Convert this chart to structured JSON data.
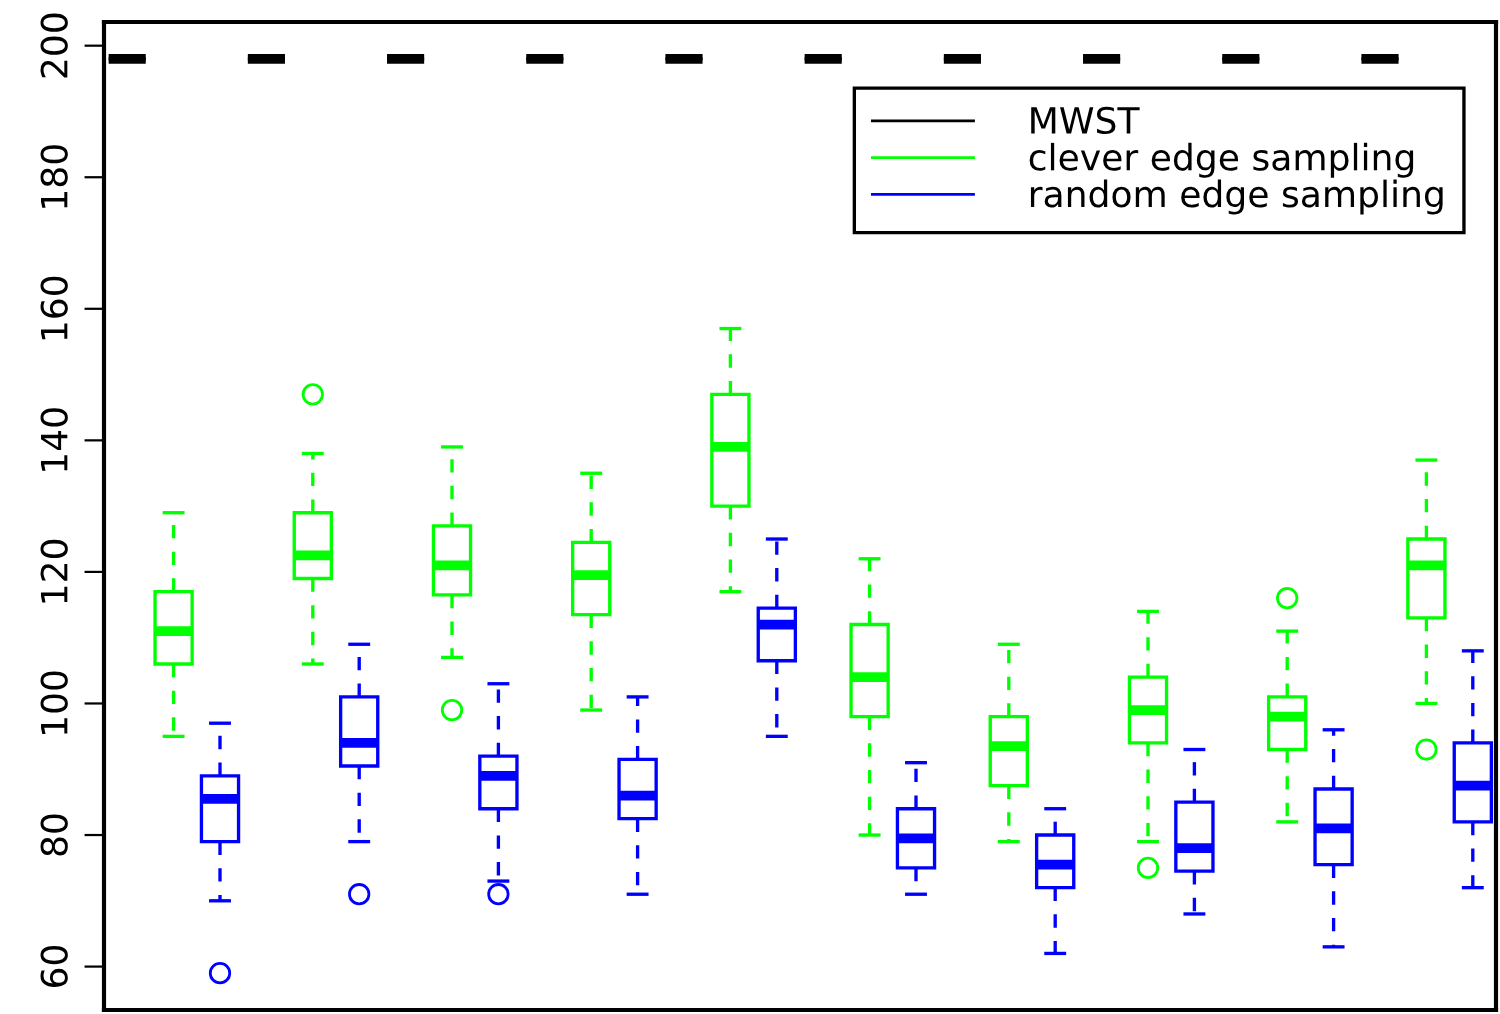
{
  "chart_data": {
    "type": "box",
    "categories": [
      null,
      null,
      null,
      null,
      null,
      null,
      null,
      null,
      null,
      null,
      null,
      null,
      null,
      null,
      null,
      null,
      null,
      null,
      null,
      null,
      null,
      null,
      null,
      null,
      null,
      null,
      null,
      null,
      null,
      null
    ],
    "series": [
      {
        "name": "MWST",
        "color": "#000000",
        "boxes": [
          {
            "low": 198,
            "q1": 198,
            "median": 198,
            "q3": 198,
            "high": 198
          },
          null,
          null,
          {
            "low": 198,
            "q1": 198,
            "median": 198,
            "q3": 198,
            "high": 198
          },
          null,
          null,
          {
            "low": 198,
            "q1": 198,
            "median": 198,
            "q3": 198,
            "high": 198
          },
          null,
          null,
          {
            "low": 198,
            "q1": 198,
            "median": 198,
            "q3": 198,
            "high": 198
          },
          null,
          null,
          {
            "low": 198,
            "q1": 198,
            "median": 198,
            "q3": 198,
            "high": 198
          },
          null,
          null,
          {
            "low": 198,
            "q1": 198,
            "median": 198,
            "q3": 198,
            "high": 198
          },
          null,
          null,
          {
            "low": 198,
            "q1": 198,
            "median": 198,
            "q3": 198,
            "high": 198
          },
          null,
          null,
          {
            "low": 198,
            "q1": 198,
            "median": 198,
            "q3": 198,
            "high": 198
          },
          null,
          null,
          {
            "low": 198,
            "q1": 198,
            "median": 198,
            "q3": 198,
            "high": 198
          },
          null,
          null,
          {
            "low": 198,
            "q1": 198,
            "median": 198,
            "q3": 198,
            "high": 198
          },
          null,
          null
        ]
      },
      {
        "name": "clever edge sampling",
        "color": "#00ff00",
        "boxes": [
          null,
          {
            "low": 95,
            "q1": 106,
            "median": 111,
            "q3": 117,
            "high": 129
          },
          null,
          null,
          {
            "low": 106,
            "q1": 119,
            "median": 122.5,
            "q3": 129,
            "high": 138,
            "outliers": [
              147
            ]
          },
          null,
          null,
          {
            "low": 107,
            "q1": 116.5,
            "median": 121,
            "q3": 127,
            "high": 139,
            "outliers": [
              99
            ]
          },
          null,
          null,
          {
            "low": 99,
            "q1": 113.5,
            "median": 119.5,
            "q3": 124.5,
            "high": 135
          },
          null,
          null,
          {
            "low": 117,
            "q1": 130,
            "median": 139,
            "q3": 147,
            "high": 157
          },
          null,
          null,
          {
            "low": 80,
            "q1": 98,
            "median": 104,
            "q3": 112,
            "high": 122
          },
          null,
          null,
          {
            "low": 79,
            "q1": 87.5,
            "median": 93.5,
            "q3": 98,
            "high": 109
          },
          null,
          null,
          {
            "low": 79,
            "q1": 94,
            "median": 99,
            "q3": 104,
            "high": 114,
            "outliers": [
              75
            ]
          },
          null,
          null,
          {
            "low": 82,
            "q1": 93,
            "median": 98,
            "q3": 101,
            "high": 111,
            "outliers": [
              116
            ]
          },
          null,
          null,
          {
            "low": 100,
            "q1": 113,
            "median": 121,
            "q3": 125,
            "high": 137,
            "outliers": [
              93
            ]
          },
          null
        ]
      },
      {
        "name": "random edge sampling",
        "color": "#0000ff",
        "boxes": [
          null,
          null,
          {
            "low": 70,
            "q1": 79,
            "median": 85.5,
            "q3": 89,
            "high": 97,
            "outliers": [
              59
            ]
          },
          null,
          null,
          {
            "low": 79,
            "q1": 90.5,
            "median": 94,
            "q3": 101,
            "high": 109,
            "outliers": [
              71
            ]
          },
          null,
          null,
          {
            "low": 73,
            "q1": 84,
            "median": 89,
            "q3": 92,
            "high": 103,
            "outliers": [
              71
            ]
          },
          null,
          null,
          {
            "low": 71,
            "q1": 82.5,
            "median": 86,
            "q3": 91.5,
            "high": 101
          },
          null,
          null,
          {
            "low": 95,
            "q1": 106.5,
            "median": 112,
            "q3": 114.5,
            "high": 125
          },
          null,
          null,
          {
            "low": 71,
            "q1": 75,
            "median": 79.5,
            "q3": 84,
            "high": 91
          },
          null,
          null,
          {
            "low": 62,
            "q1": 72,
            "median": 75.5,
            "q3": 80,
            "high": 84
          },
          null,
          null,
          {
            "low": 68,
            "q1": 74.5,
            "median": 78,
            "q3": 85,
            "high": 93
          },
          null,
          null,
          {
            "low": 63,
            "q1": 75.5,
            "median": 81,
            "q3": 87,
            "high": 96
          },
          null,
          null,
          {
            "low": 72,
            "q1": 82,
            "median": 87.5,
            "q3": 94,
            "high": 108
          }
        ]
      }
    ],
    "ylim": [
      53.4,
      203.6
    ],
    "yticks": [
      60,
      80,
      100,
      120,
      140,
      160,
      180,
      200
    ],
    "tick_labels": "y",
    "legend": "top right",
    "grid": false
  }
}
